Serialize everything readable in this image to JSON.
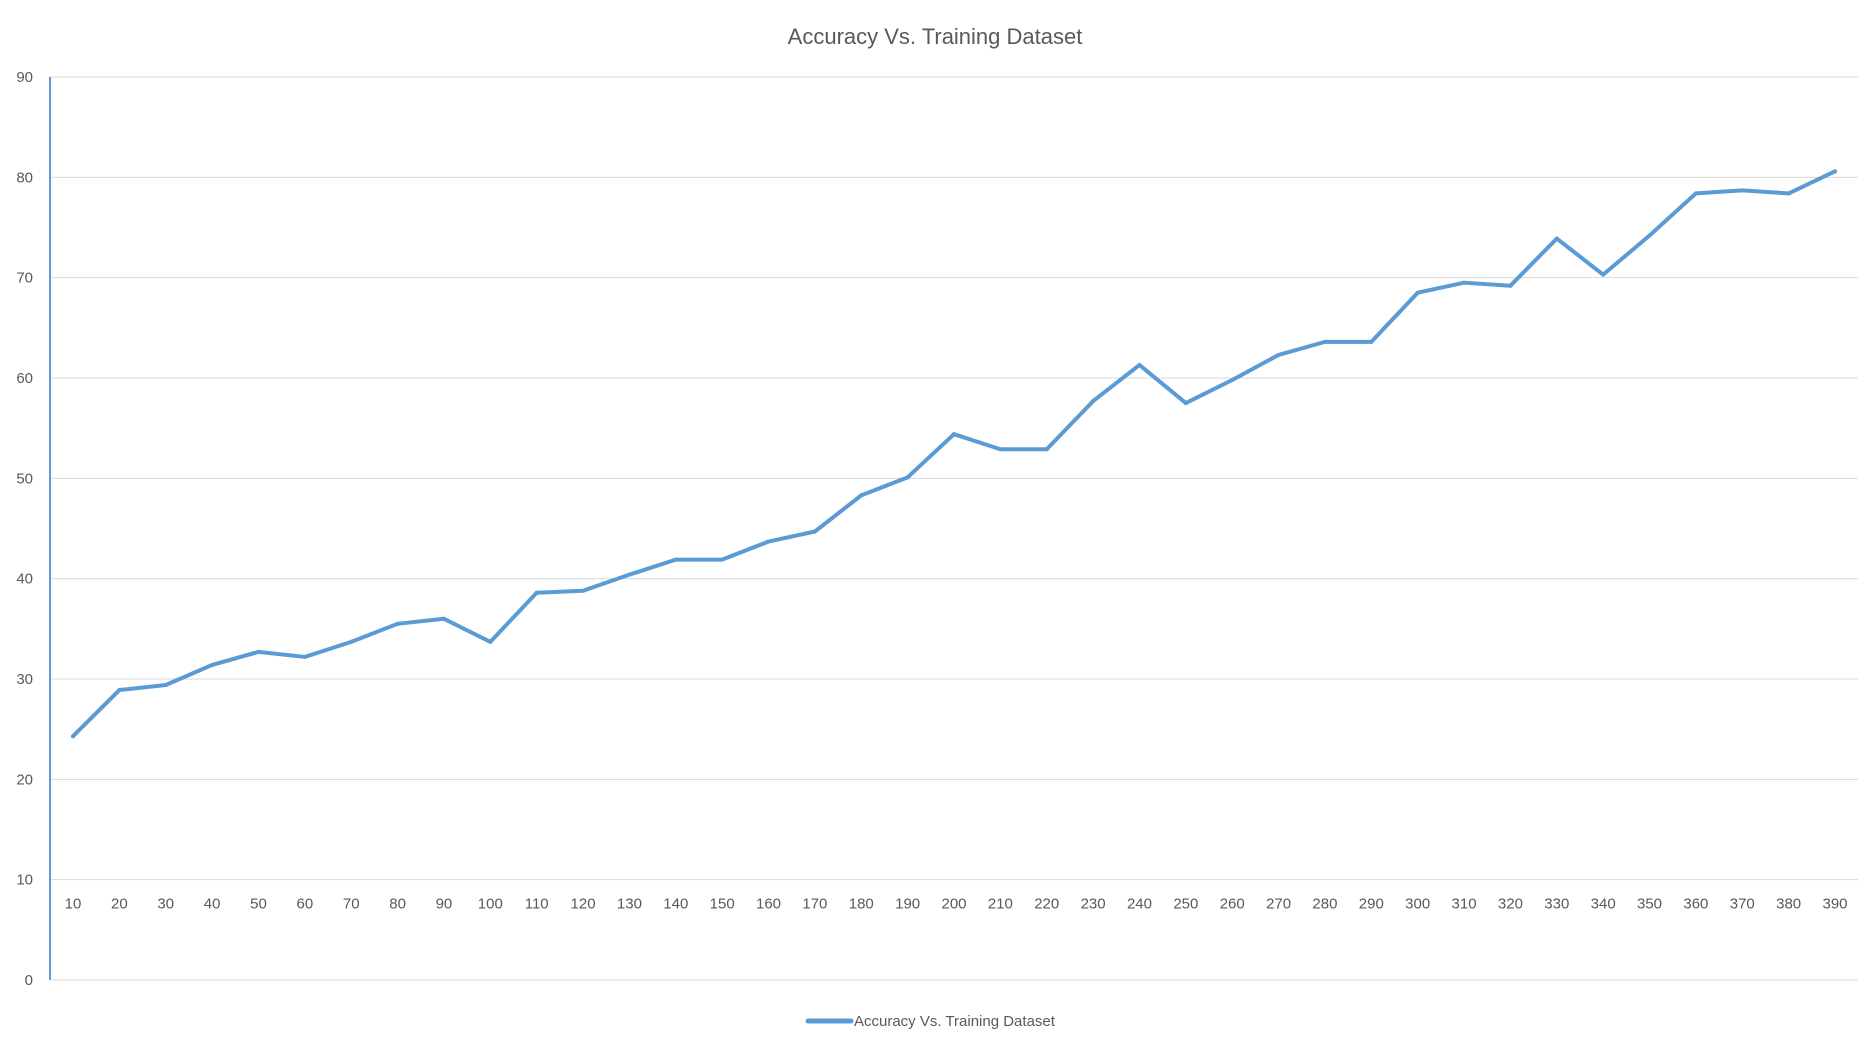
{
  "chart_data": {
    "type": "line",
    "title": "Accuracy Vs. Training Dataset",
    "xlabel": "",
    "ylabel": "",
    "ylim": [
      0,
      90
    ],
    "yticks": [
      "0",
      "10",
      "20",
      "30",
      "40",
      "50",
      "60",
      "70",
      "80",
      "90"
    ],
    "grid": true,
    "legend_position": "bottom",
    "categories": [
      "10",
      "20",
      "30",
      "40",
      "50",
      "60",
      "70",
      "80",
      "90",
      "100",
      "110",
      "120",
      "130",
      "140",
      "150",
      "160",
      "170",
      "180",
      "190",
      "200",
      "210",
      "220",
      "230",
      "240",
      "250",
      "260",
      "270",
      "280",
      "290",
      "300",
      "310",
      "320",
      "330",
      "340",
      "350",
      "360",
      "370",
      "380",
      "390"
    ],
    "series": [
      {
        "name": "Accuracy Vs. Training Dataset",
        "color": "#5b9bd5",
        "values": [
          24.3,
          28.9,
          29.4,
          31.4,
          32.7,
          32.2,
          33.7,
          35.5,
          36.0,
          33.7,
          38.6,
          38.8,
          40.4,
          41.9,
          41.9,
          43.7,
          44.7,
          48.3,
          50.1,
          54.4,
          52.9,
          52.9,
          57.7,
          61.3,
          57.5,
          59.8,
          62.3,
          63.6,
          63.6,
          68.5,
          69.5,
          69.2,
          73.9,
          70.3,
          74.2,
          78.4,
          78.7,
          78.4,
          80.6
        ]
      }
    ]
  }
}
